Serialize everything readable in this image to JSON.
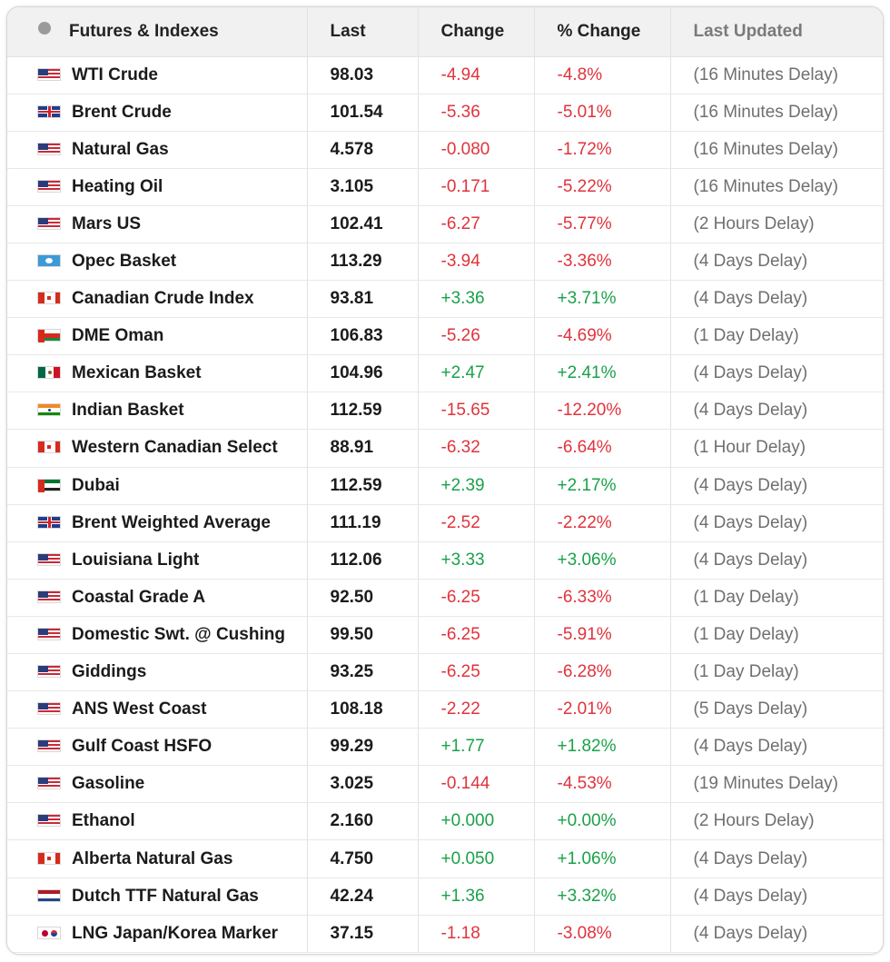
{
  "table": {
    "headers": {
      "name": "Futures & Indexes",
      "last": "Last",
      "change": "Change",
      "pct_change": "% Change",
      "last_updated": "Last Updated"
    },
    "colors": {
      "negative": "#e0333c",
      "positive": "#1aa14a",
      "updated": "#6f6f6f"
    },
    "rows": [
      {
        "flag": "us-flag",
        "name": "WTI Crude",
        "last": "98.03",
        "change": "-4.94",
        "pct": "-4.8%",
        "updated": "(16 Minutes Delay)"
      },
      {
        "flag": "gb-flag",
        "name": "Brent Crude",
        "last": "101.54",
        "change": "-5.36",
        "pct": "-5.01%",
        "updated": "(16 Minutes Delay)"
      },
      {
        "flag": "us-flag",
        "name": "Natural Gas",
        "last": "4.578",
        "change": "-0.080",
        "pct": "-1.72%",
        "updated": "(16 Minutes Delay)"
      },
      {
        "flag": "us-flag",
        "name": "Heating Oil",
        "last": "3.105",
        "change": "-0.171",
        "pct": "-5.22%",
        "updated": "(16 Minutes Delay)"
      },
      {
        "flag": "us-flag",
        "name": "Mars US",
        "last": "102.41",
        "change": "-6.27",
        "pct": "-5.77%",
        "updated": "(2 Hours Delay)"
      },
      {
        "flag": "opec-flag",
        "name": "Opec Basket",
        "last": "113.29",
        "change": "-3.94",
        "pct": "-3.36%",
        "updated": "(4 Days Delay)"
      },
      {
        "flag": "ca-flag",
        "name": "Canadian Crude Index",
        "last": "93.81",
        "change": "+3.36",
        "pct": "+3.71%",
        "updated": "(4 Days Delay)"
      },
      {
        "flag": "om-flag",
        "name": "DME Oman",
        "last": "106.83",
        "change": "-5.26",
        "pct": "-4.69%",
        "updated": "(1 Day Delay)"
      },
      {
        "flag": "mx-flag",
        "name": "Mexican Basket",
        "last": "104.96",
        "change": "+2.47",
        "pct": "+2.41%",
        "updated": "(4 Days Delay)"
      },
      {
        "flag": "in-flag",
        "name": "Indian Basket",
        "last": "112.59",
        "change": "-15.65",
        "pct": "-12.20%",
        "updated": "(4 Days Delay)"
      },
      {
        "flag": "ca-flag",
        "name": "Western Canadian Select",
        "last": "88.91",
        "change": "-6.32",
        "pct": "-6.64%",
        "updated": "(1 Hour Delay)"
      },
      {
        "flag": "ae-flag",
        "name": "Dubai",
        "last": "112.59",
        "change": "+2.39",
        "pct": "+2.17%",
        "updated": "(4 Days Delay)"
      },
      {
        "flag": "gb-flag",
        "name": "Brent Weighted Average",
        "last": "111.19",
        "change": "-2.52",
        "pct": "-2.22%",
        "updated": "(4 Days Delay)"
      },
      {
        "flag": "us-flag",
        "name": "Louisiana Light",
        "last": "112.06",
        "change": "+3.33",
        "pct": "+3.06%",
        "updated": "(4 Days Delay)"
      },
      {
        "flag": "us-flag",
        "name": "Coastal Grade A",
        "last": "92.50",
        "change": "-6.25",
        "pct": "-6.33%",
        "updated": "(1 Day Delay)"
      },
      {
        "flag": "us-flag",
        "name": "Domestic Swt. @ Cushing",
        "last": "99.50",
        "change": "-6.25",
        "pct": "-5.91%",
        "updated": "(1 Day Delay)"
      },
      {
        "flag": "us-flag",
        "name": "Giddings",
        "last": "93.25",
        "change": "-6.25",
        "pct": "-6.28%",
        "updated": "(1 Day Delay)"
      },
      {
        "flag": "us-flag",
        "name": "ANS West Coast",
        "last": "108.18",
        "change": "-2.22",
        "pct": "-2.01%",
        "updated": "(5 Days Delay)"
      },
      {
        "flag": "us-flag",
        "name": "Gulf Coast HSFO",
        "last": "99.29",
        "change": "+1.77",
        "pct": "+1.82%",
        "updated": "(4 Days Delay)"
      },
      {
        "flag": "us-flag",
        "name": "Gasoline",
        "last": "3.025",
        "change": "-0.144",
        "pct": "-4.53%",
        "updated": "(19 Minutes Delay)"
      },
      {
        "flag": "us-flag",
        "name": "Ethanol",
        "last": "2.160",
        "change": "+0.000",
        "pct": "+0.00%",
        "updated": "(2 Hours Delay)"
      },
      {
        "flag": "ca-flag",
        "name": "Alberta Natural Gas",
        "last": "4.750",
        "change": "+0.050",
        "pct": "+1.06%",
        "updated": "(4 Days Delay)"
      },
      {
        "flag": "nl-flag",
        "name": "Dutch TTF Natural Gas",
        "last": "42.24",
        "change": "+1.36",
        "pct": "+3.32%",
        "updated": "(4 Days Delay)"
      },
      {
        "flag": "jp-kr-flag",
        "name": "LNG Japan/Korea Marker",
        "last": "37.15",
        "change": "-1.18",
        "pct": "-3.08%",
        "updated": "(4 Days Delay)"
      }
    ]
  }
}
